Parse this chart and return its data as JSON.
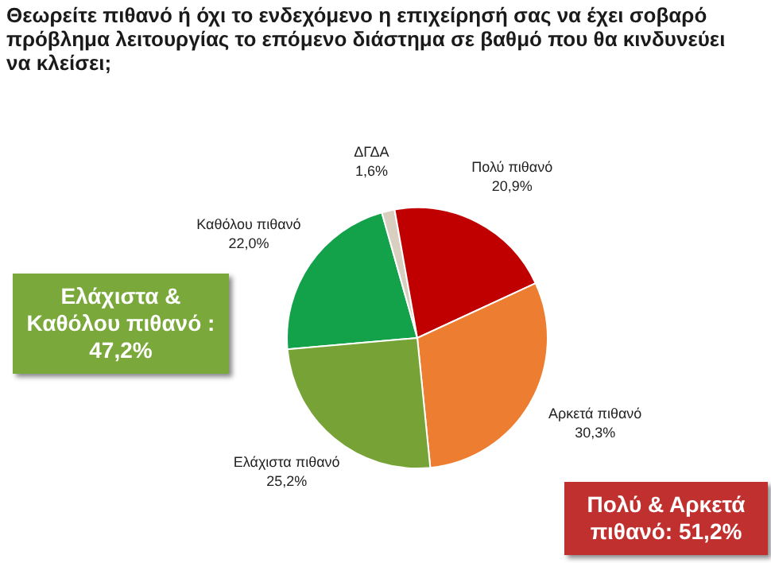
{
  "chart_data": {
    "type": "pie",
    "title": "Θεωρείτε πιθανό ή όχι το ενδεχόμενο η επιχείρησή σας να έχει σοβαρό πρόβλημα λειτουργίας το επόμενο διάστημα σε βαθμό που θα κινδυνεύει να κλείσει;",
    "categories": [
      "Καθόλου πιθανό",
      "ΔΓΔΑ",
      "Πολύ πιθανό",
      "Αρκετά πιθανό",
      "Ελάχιστα πιθανό"
    ],
    "values": [
      22.0,
      1.6,
      20.9,
      30.3,
      25.2
    ],
    "value_labels": [
      "22,0%",
      "1,6%",
      "20,9%",
      "30,3%",
      "25,2%"
    ],
    "colors": [
      "#13a24a",
      "#d9cfc0",
      "#c00000",
      "#ed7d31",
      "#77a236"
    ],
    "annotations": [
      "Ελάχιστα & Καθόλου πιθανό : 47,2%",
      "Πολύ & Αρκετά πιθανό: 51,2%"
    ],
    "legend": false
  }
}
